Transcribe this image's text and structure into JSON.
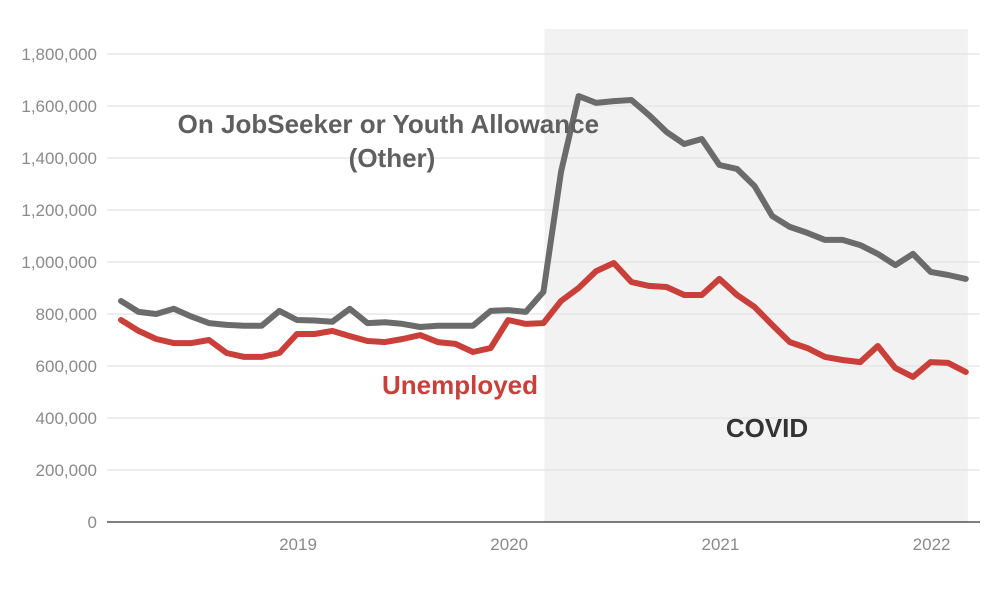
{
  "chart_data": {
    "type": "line",
    "title": "",
    "xlabel": "",
    "ylabel": "",
    "ylim": [
      0,
      1800000
    ],
    "yticks": [
      0,
      200000,
      400000,
      600000,
      800000,
      1000000,
      1200000,
      1400000,
      1600000,
      1800000
    ],
    "ytick_labels": [
      "0",
      "200,000",
      "400,000",
      "600,000",
      "800,000",
      "1,000,000",
      "1,200,000",
      "1,400,000",
      "1,600,000",
      "1,800,000"
    ],
    "xtick_labels": [
      {
        "label": "2019",
        "x": "2019-01"
      },
      {
        "label": "2020",
        "x": "2020-01"
      },
      {
        "label": "2021",
        "x": "2021-01"
      },
      {
        "label": "2022",
        "x": "2022-01"
      }
    ],
    "grid": true,
    "x": [
      "2018-03",
      "2018-04",
      "2018-05",
      "2018-06",
      "2018-07",
      "2018-08",
      "2018-09",
      "2018-10",
      "2018-11",
      "2018-12",
      "2019-01",
      "2019-02",
      "2019-03",
      "2019-04",
      "2019-05",
      "2019-06",
      "2019-07",
      "2019-08",
      "2019-09",
      "2019-10",
      "2019-11",
      "2019-12",
      "2020-01",
      "2020-02",
      "2020-03",
      "2020-04",
      "2020-05",
      "2020-06",
      "2020-07",
      "2020-08",
      "2020-09",
      "2020-10",
      "2020-11",
      "2020-12",
      "2021-01",
      "2021-02",
      "2021-03",
      "2021-04",
      "2021-05",
      "2021-06",
      "2021-07",
      "2021-08",
      "2021-09",
      "2021-10",
      "2021-11",
      "2021-12",
      "2022-01",
      "2022-02",
      "2022-03"
    ],
    "series": [
      {
        "name": "On JobSeeker or Youth Allowance (Other)",
        "label_lines": [
          "On JobSeeker or Youth Allowance",
          "(Other)"
        ],
        "color": "#6b6b6b",
        "values": [
          850000,
          808000,
          800000,
          820000,
          790000,
          765000,
          758000,
          755000,
          755000,
          812000,
          777000,
          775000,
          770000,
          820000,
          765000,
          768000,
          762000,
          750000,
          755000,
          755000,
          755000,
          812000,
          815000,
          808000,
          885000,
          1346000,
          1638000,
          1612000,
          1619000,
          1623000,
          1565000,
          1500000,
          1454000,
          1473000,
          1373000,
          1358000,
          1292000,
          1177000,
          1135000,
          1112000,
          1085000,
          1085000,
          1065000,
          1031000,
          988000,
          1031000,
          962000,
          950000,
          935000
        ]
      },
      {
        "name": "Unemployed",
        "label_lines": [
          "Unemployed"
        ],
        "color": "#c9403a",
        "values": [
          777000,
          735000,
          704000,
          688000,
          688000,
          700000,
          650000,
          635000,
          635000,
          650000,
          723000,
          723000,
          735000,
          715000,
          696000,
          692000,
          704000,
          719000,
          692000,
          685000,
          654000,
          669000,
          777000,
          762000,
          765000,
          850000,
          900000,
          965000,
          996000,
          923000,
          908000,
          904000,
          873000,
          873000,
          935000,
          873000,
          827000,
          758000,
          692000,
          669000,
          635000,
          623000,
          615000,
          677000,
          592000,
          558000,
          615000,
          612000,
          577000
        ]
      }
    ],
    "annotations": [
      {
        "text": "COVID",
        "shaded_from": "2020-03",
        "shaded_to": "2022-03",
        "shade_color": "#f2f2f2",
        "text_color": "#333333"
      }
    ]
  }
}
